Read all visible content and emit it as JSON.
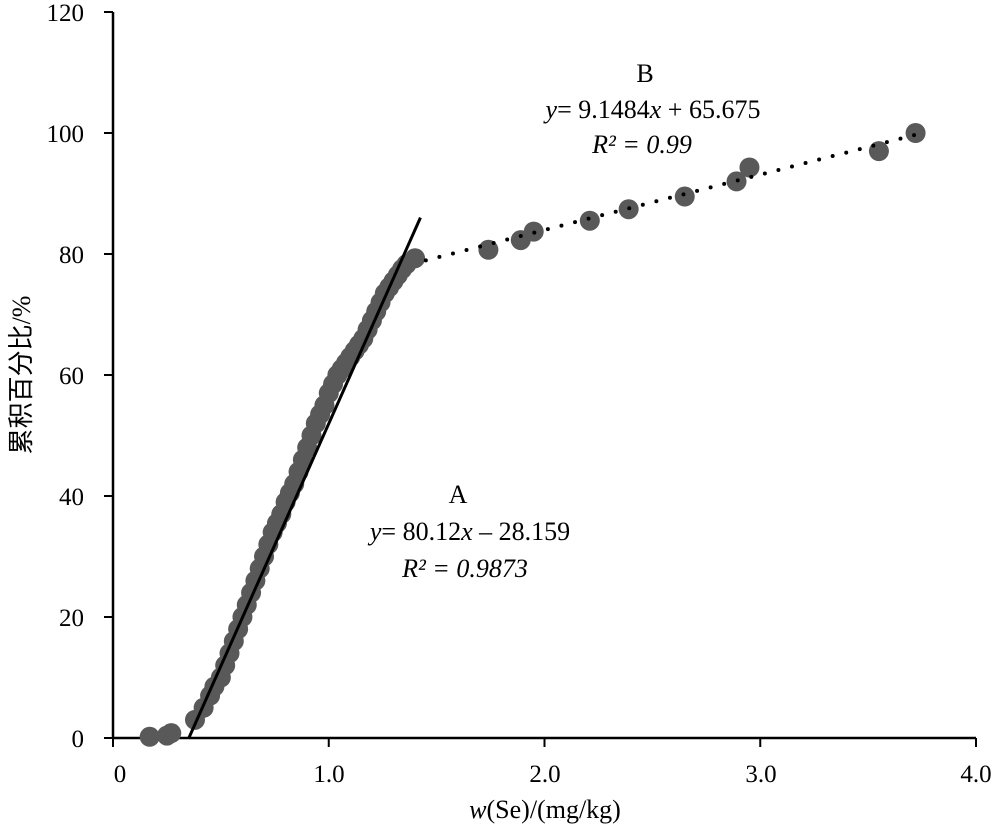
{
  "chart_data": {
    "type": "scatter",
    "xlabel_italic": "w",
    "xlabel_rest": "(Se)/(mg/kg)",
    "ylabel": "累积百分比/%",
    "xlim": [
      0,
      4.0
    ],
    "ylim": [
      0,
      120
    ],
    "x_ticks": [
      "0",
      "1.0",
      "2.0",
      "3.0",
      "4.0"
    ],
    "y_ticks": [
      "0",
      "20",
      "40",
      "60",
      "80",
      "100",
      "120"
    ],
    "grid": false,
    "marker_color": "#595959",
    "series": [
      {
        "x": [
          0.17,
          0.25,
          0.27,
          0.38,
          0.42,
          0.45,
          0.47,
          0.5,
          0.52,
          0.54,
          0.56,
          0.58,
          0.6,
          0.62,
          0.64,
          0.66,
          0.68,
          0.7,
          0.72,
          0.74,
          0.76,
          0.78,
          0.8,
          0.82,
          0.84,
          0.86,
          0.88,
          0.9,
          0.92,
          0.94,
          0.96,
          0.98,
          1.0,
          1.02,
          1.04,
          1.06,
          1.08,
          1.1,
          1.12,
          1.14,
          1.16,
          1.18,
          1.2,
          1.22,
          1.24,
          1.26,
          1.28,
          1.3,
          1.32,
          1.34,
          1.36,
          1.4,
          1.74,
          1.89,
          1.95,
          2.21,
          2.39,
          2.65,
          2.89,
          2.95,
          3.55,
          3.72
        ],
        "y": [
          0.2,
          0.4,
          0.8,
          3,
          5,
          7,
          8.5,
          10,
          12,
          14,
          16,
          18,
          20,
          22,
          24,
          26,
          28,
          30,
          32,
          34,
          35.5,
          37,
          39,
          40.5,
          42,
          44,
          46,
          48,
          50,
          52,
          53.5,
          55,
          57,
          58.5,
          60,
          61,
          62,
          63,
          64,
          65,
          66,
          67.5,
          69,
          70.5,
          72,
          73.5,
          74.5,
          75.5,
          76.5,
          77.5,
          78.3,
          79.3,
          80.7,
          82.3,
          83.7,
          85.5,
          87.4,
          89.5,
          92.0,
          94.3,
          97.0,
          100.0
        ]
      }
    ],
    "fits": [
      {
        "label": "A",
        "equation_y": "y",
        "equation_mid": "= 80.12",
        "equation_x": "x",
        "equation_end": " – 28.159",
        "r2": "R² = 0.9873",
        "slope": 80.12,
        "intercept": -28.159,
        "x_range": [
          0.35,
          1.425
        ],
        "style": "solid"
      },
      {
        "label": "B",
        "equation_y": "y",
        "equation_mid": "= 9.1484",
        "equation_x": "x",
        "equation_end": " + 65.675",
        "r2": "R² = 0.99",
        "slope": 9.1484,
        "intercept": 65.675,
        "x_range": [
          1.45,
          3.74
        ],
        "style": "dotted"
      }
    ]
  }
}
